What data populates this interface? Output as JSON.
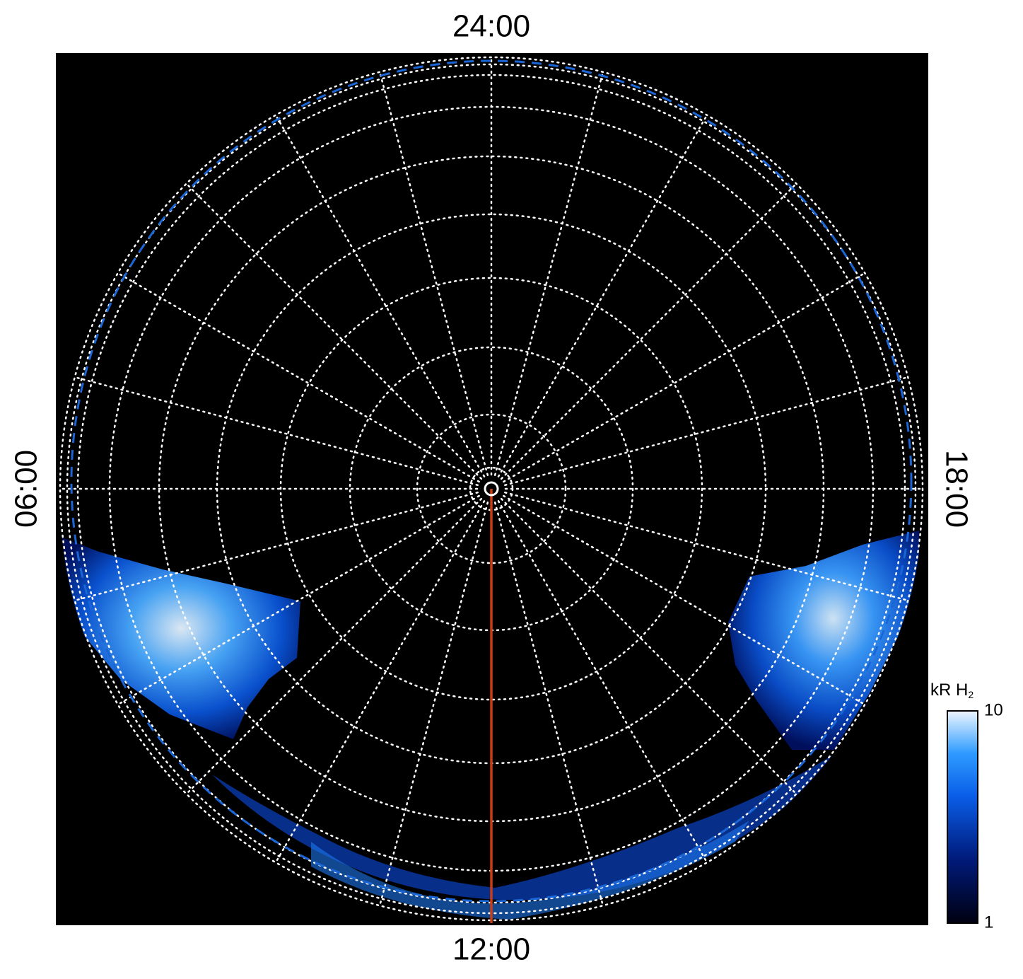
{
  "labels": {
    "top": "24:00",
    "bottom": "12:00",
    "left": "06:00",
    "right": "18:00"
  },
  "colorbar": {
    "title": "kR H",
    "title_subscript": "2",
    "scale": "log",
    "range": [
      1,
      10
    ],
    "ticks": [
      1,
      10
    ]
  }
}
